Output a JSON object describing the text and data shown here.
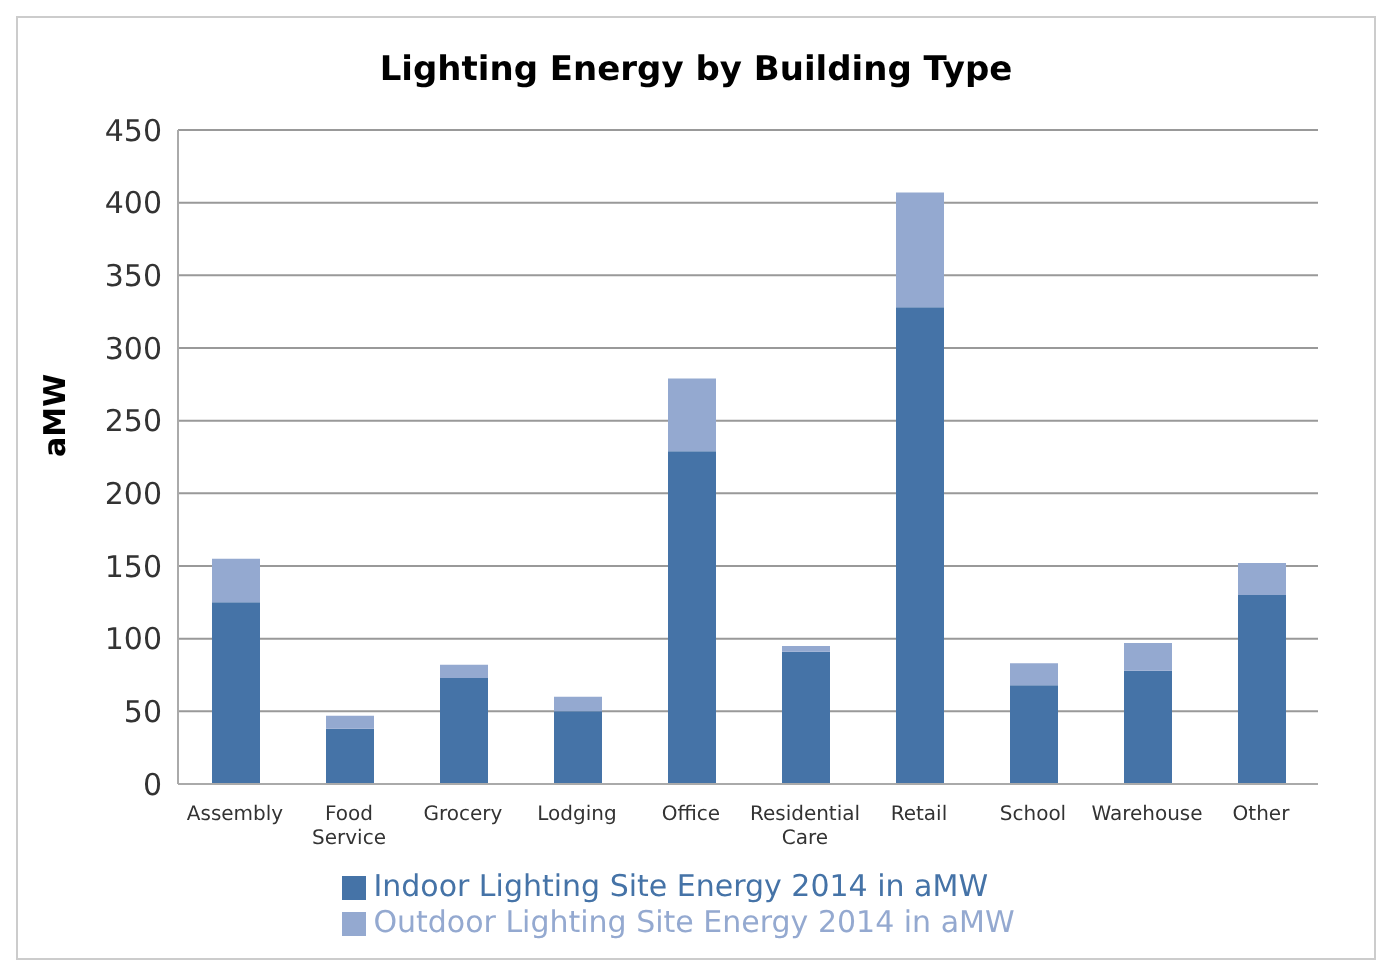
{
  "chart_data": {
    "type": "bar",
    "title": "Lighting Energy by Building Type",
    "ylabel": "aMW",
    "stacked": true,
    "categories": [
      "Assembly",
      "Food Service",
      "Grocery",
      "Lodging",
      "Office",
      "Residential Care",
      "Retail",
      "School",
      "Warehouse",
      "Other"
    ],
    "series": [
      {
        "name": "Indoor Lighting Site Energy 2014 in aMW",
        "color": "#4573a7",
        "values": [
          125,
          38,
          73,
          50,
          229,
          91,
          328,
          68,
          78,
          130
        ]
      },
      {
        "name": "Outdoor Lighting Site Energy 2014 in aMW",
        "color": "#94a9d0",
        "values": [
          30,
          9,
          9,
          10,
          50,
          4,
          79,
          15,
          19,
          22
        ]
      }
    ],
    "ylim": [
      0,
      450
    ],
    "yticks": [
      0,
      50,
      100,
      150,
      200,
      250,
      300,
      350,
      400,
      450
    ],
    "grid": "y",
    "legend": "bottom"
  }
}
